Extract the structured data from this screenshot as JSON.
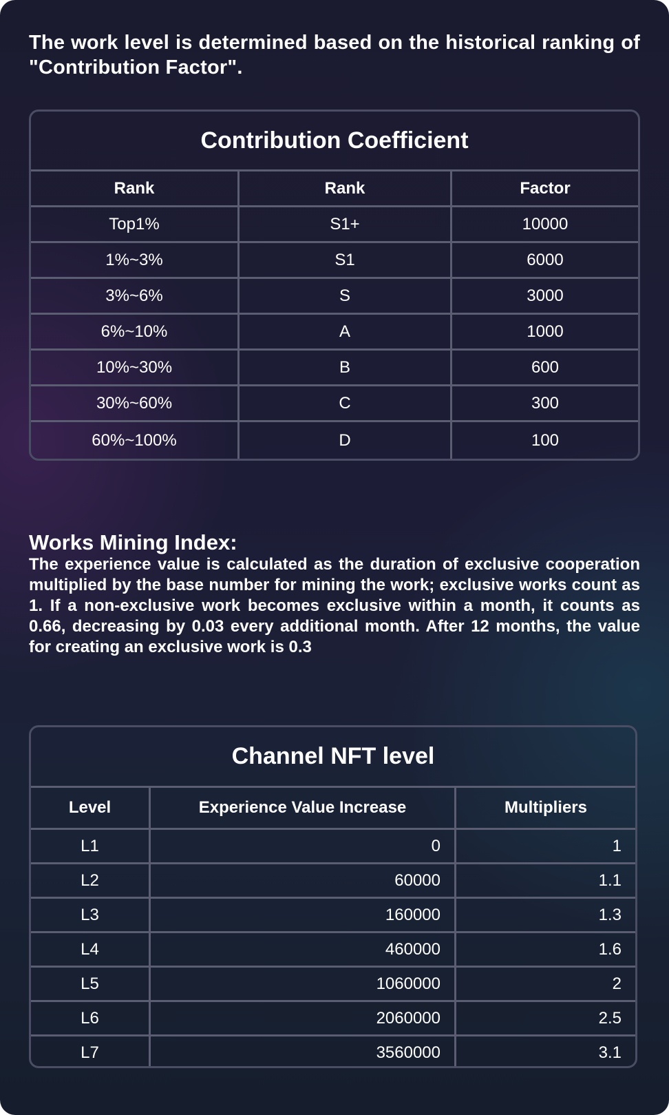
{
  "intro": "The work level is determined based on the historical ranking of \"Contribution Factor\".",
  "contribution_table": {
    "title": "Contribution Coefficient",
    "headers": [
      "Rank",
      "Rank",
      "Factor"
    ],
    "rows": [
      [
        "Top1%",
        "S1+",
        "10000"
      ],
      [
        "1%~3%",
        "S1",
        "6000"
      ],
      [
        "3%~6%",
        "S",
        "3000"
      ],
      [
        "6%~10%",
        "A",
        "1000"
      ],
      [
        "10%~30%",
        "B",
        "600"
      ],
      [
        "30%~60%",
        "C",
        "300"
      ],
      [
        "60%~100%",
        "D",
        "100"
      ]
    ]
  },
  "mining": {
    "title": "Works Mining Index:",
    "body": "The experience value is calculated as the duration of exclusive cooperation multiplied by the base number for mining the work; exclusive works count as 1. If a non-exclusive work becomes exclusive within a month, it counts as 0.66, decreasing by 0.03 every additional month. After 12 months, the value for creating an exclusive work is 0.3"
  },
  "nft_table": {
    "title": "Channel NFT level",
    "headers": [
      "Level",
      "Experience Value Increase",
      "Multipliers"
    ],
    "rows": [
      [
        "L1",
        "0",
        "1"
      ],
      [
        "L2",
        "60000",
        "1.1"
      ],
      [
        "L3",
        "160000",
        "1.3"
      ],
      [
        "L4",
        "460000",
        "1.6"
      ],
      [
        "L5",
        "1060000",
        "2"
      ],
      [
        "L6",
        "2060000",
        "2.5"
      ],
      [
        "L7",
        "3560000",
        "3.1"
      ]
    ]
  }
}
